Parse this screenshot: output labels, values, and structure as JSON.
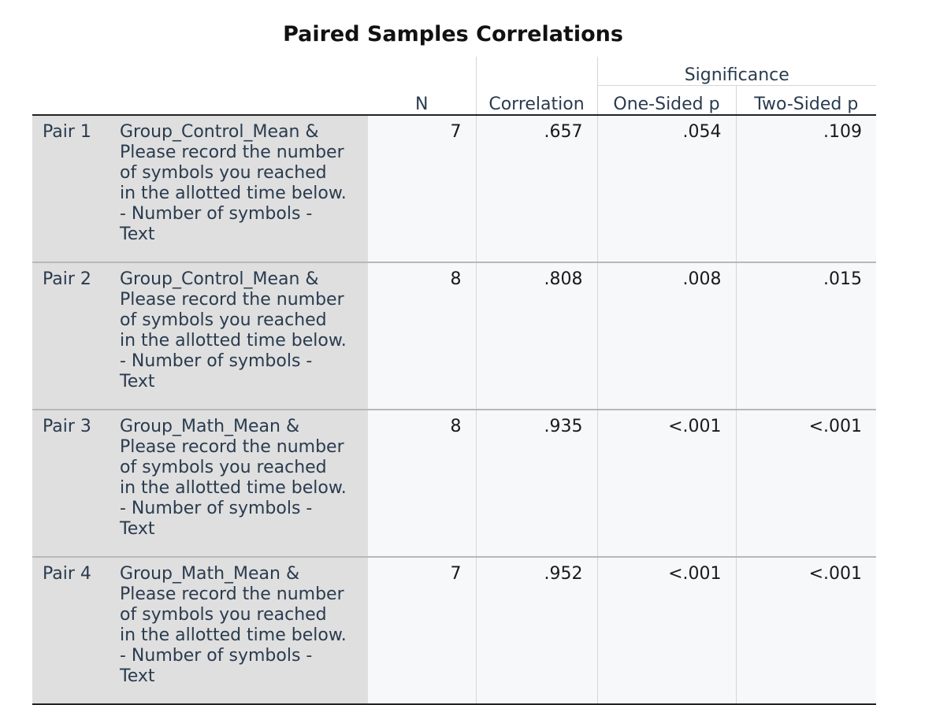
{
  "title": "Paired Samples Correlations",
  "header": {
    "significance": "Significance",
    "n": "N",
    "correlation": "Correlation",
    "one_sided": "One-Sided p",
    "two_sided": "Two-Sided p"
  },
  "rows": [
    {
      "pair": "Pair 1",
      "desc": [
        "Group_Control_Mean &",
        "Please record the number",
        "of symbols you reached",
        "in the allotted time below.",
        "- Number of symbols -",
        "Text"
      ],
      "n": "7",
      "corr": ".657",
      "one": ".054",
      "two": ".109"
    },
    {
      "pair": "Pair 2",
      "desc": [
        "Group_Control_Mean &",
        "Please record the number",
        "of symbols you reached",
        "in the allotted time below.",
        "- Number of symbols -",
        "Text"
      ],
      "n": "8",
      "corr": ".808",
      "one": ".008",
      "two": ".015"
    },
    {
      "pair": "Pair 3",
      "desc": [
        "Group_Math_Mean &",
        "Please record the number",
        "of symbols you reached",
        "in the allotted time below.",
        "- Number of symbols -",
        "Text"
      ],
      "n": "8",
      "corr": ".935",
      "one": "<.001",
      "two": "<.001"
    },
    {
      "pair": "Pair 4",
      "desc": [
        "Group_Math_Mean &",
        "Please record the number",
        "of symbols you reached",
        "in the allotted time below.",
        "- Number of symbols -",
        "Text"
      ],
      "n": "7",
      "corr": ".952",
      "one": "<.001",
      "two": "<.001"
    }
  ]
}
